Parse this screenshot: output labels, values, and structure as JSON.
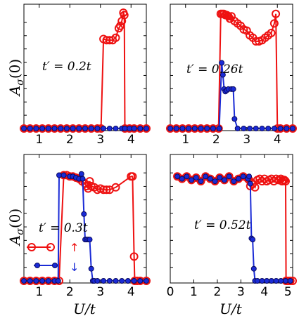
{
  "colors": {
    "up": "#ee1111",
    "down": "#1a2bd6",
    "down_edge": "#0a0a60"
  },
  "axis_labels": {
    "y": "A_σ(0)",
    "y_main": "A",
    "y_sub": "σ",
    "y_tail": "(0)",
    "x": "U/t"
  },
  "legend": {
    "up_symbol": "↑",
    "down_symbol": "↓"
  },
  "chart_data": [
    {
      "type": "line",
      "annotation": "t′ = 0.2t",
      "xlim": [
        0.5,
        4.5
      ],
      "ylim": [
        0,
        1
      ],
      "xticks": [
        1,
        2,
        3,
        4
      ],
      "xtick_labels": [
        "1",
        "2",
        "3",
        "4"
      ],
      "show_xticklabels": true,
      "series": [
        {
          "key": "up",
          "x": [
            0.5,
            0.7,
            0.9,
            1.1,
            1.3,
            1.5,
            1.7,
            1.9,
            2.1,
            2.3,
            2.5,
            2.7,
            2.9,
            3.02,
            3.1,
            3.2,
            3.3,
            3.4,
            3.5,
            3.6,
            3.65,
            3.7,
            3.75,
            3.78,
            3.8,
            3.95,
            4.1,
            4.3,
            4.5
          ],
          "y": [
            0,
            0,
            0,
            0,
            0,
            0,
            0,
            0,
            0,
            0,
            0,
            0,
            0,
            0,
            0.75,
            0.74,
            0.74,
            0.74,
            0.76,
            0.84,
            0.86,
            0.9,
            0.97,
            0.95,
            0,
            0,
            0,
            0,
            0
          ]
        },
        {
          "key": "down",
          "x": [
            0.5,
            0.7,
            0.9,
            1.1,
            1.3,
            1.5,
            1.7,
            1.9,
            2.1,
            2.3,
            2.5,
            2.7,
            2.9,
            3.1,
            3.3,
            3.5,
            3.7,
            3.8,
            3.95,
            4.1,
            4.3,
            4.5
          ],
          "y": [
            0,
            0,
            0,
            0,
            0,
            0,
            0,
            0,
            0,
            0,
            0,
            0,
            0,
            0,
            0,
            0,
            0,
            0,
            0,
            0,
            0,
            0
          ]
        }
      ]
    },
    {
      "type": "line",
      "annotation": "t′ = 0.26t",
      "xlim": [
        0.5,
        4.5
      ],
      "ylim": [
        0,
        1
      ],
      "xticks": [
        1,
        2,
        3,
        4
      ],
      "xtick_labels": [
        "1",
        "2",
        "3",
        "4"
      ],
      "show_xticklabels": true,
      "series": [
        {
          "key": "up",
          "x": [
            0.5,
            0.7,
            0.9,
            1.1,
            1.3,
            1.5,
            1.7,
            1.9,
            2.08,
            2.15,
            2.2,
            2.25,
            2.3,
            2.35,
            2.4,
            2.45,
            2.5,
            2.6,
            2.7,
            2.8,
            2.9,
            3.0,
            3.1,
            3.2,
            3.3,
            3.4,
            3.5,
            3.6,
            3.7,
            3.8,
            3.9,
            3.95,
            4.0,
            4.1,
            4.3,
            4.5
          ],
          "y": [
            0,
            0,
            0,
            0,
            0,
            0,
            0,
            0,
            0,
            0.96,
            0.96,
            0.96,
            0.95,
            0.95,
            0.94,
            0.92,
            0.94,
            0.9,
            0.88,
            0.86,
            0.83,
            0.82,
            0.78,
            0.76,
            0.73,
            0.73,
            0.74,
            0.76,
            0.78,
            0.8,
            0.88,
            0.96,
            0,
            0,
            0,
            0
          ]
        },
        {
          "key": "down",
          "x": [
            0.5,
            0.7,
            0.9,
            1.1,
            1.3,
            1.5,
            1.7,
            1.9,
            2.1,
            2.18,
            2.22,
            2.26,
            2.3,
            2.35,
            2.4,
            2.5,
            2.56,
            2.6,
            2.7,
            2.9,
            3.1,
            3.3,
            3.5,
            3.7,
            3.9,
            4.1,
            4.3,
            4.5
          ],
          "y": [
            0,
            0,
            0,
            0,
            0,
            0,
            0,
            0,
            0,
            0.55,
            0.45,
            0.33,
            0.31,
            0.32,
            0.33,
            0.33,
            0.33,
            0.08,
            0,
            0,
            0,
            0,
            0,
            0,
            0,
            0,
            0,
            0
          ]
        }
      ]
    },
    {
      "type": "line",
      "annotation": "t′ = 0.3t",
      "xlim": [
        0.5,
        4.5
      ],
      "ylim": [
        0,
        1
      ],
      "xticks": [
        1,
        2,
        3,
        4
      ],
      "xtick_labels": [
        "1",
        "2",
        "3",
        "4"
      ],
      "show_xticklabels": true,
      "series": [
        {
          "key": "up",
          "x": [
            0.5,
            0.7,
            0.9,
            1.1,
            1.3,
            1.5,
            1.65,
            1.8,
            1.9,
            2.0,
            2.1,
            2.2,
            2.3,
            2.4,
            2.5,
            2.55,
            2.6,
            2.65,
            2.7,
            2.8,
            2.9,
            3.0,
            3.1,
            3.2,
            3.3,
            3.5,
            4.0,
            4.05,
            4.1,
            4.12,
            4.2,
            4.3,
            4.5
          ],
          "y": [
            0,
            0,
            0,
            0,
            0,
            0,
            0,
            0.87,
            0.87,
            0.86,
            0.86,
            0.85,
            0.84,
            0.82,
            0.8,
            0.78,
            0.76,
            0.82,
            0.78,
            0.77,
            0.75,
            0.76,
            0.75,
            0.75,
            0.75,
            0.77,
            0.86,
            0.86,
            0.2,
            0,
            0,
            0,
            0
          ]
        },
        {
          "key": "down",
          "x": [
            0.5,
            0.7,
            0.9,
            1.1,
            1.3,
            1.5,
            1.62,
            1.65,
            1.8,
            2.0,
            2.1,
            2.2,
            2.3,
            2.38,
            2.42,
            2.46,
            2.5,
            2.55,
            2.6,
            2.65,
            2.7,
            2.75,
            2.8,
            2.9,
            3.1,
            3.3,
            3.5,
            3.7,
            3.9,
            4.1,
            4.3,
            4.5
          ],
          "y": [
            0,
            0,
            0,
            0,
            0,
            0,
            0,
            0.87,
            0.87,
            0.86,
            0.86,
            0.85,
            0.84,
            0.88,
            0.84,
            0.55,
            0.34,
            0.34,
            0.34,
            0.34,
            0.1,
            0,
            0,
            0,
            0,
            0,
            0,
            0,
            0,
            0,
            0,
            0
          ]
        }
      ]
    },
    {
      "type": "line",
      "annotation": "t′ = 0.52t",
      "xlim": [
        0,
        5.2
      ],
      "ylim": [
        0,
        1
      ],
      "xticks": [
        0,
        1,
        2,
        3,
        4,
        5
      ],
      "xtick_labels": [
        "0",
        "1",
        "2",
        "3",
        "4",
        "5"
      ],
      "show_xticklabels": true,
      "series": [
        {
          "key": "up",
          "x": [
            0.3,
            0.5,
            0.7,
            0.9,
            1.1,
            1.3,
            1.5,
            1.7,
            1.9,
            2.1,
            2.3,
            2.5,
            2.7,
            2.9,
            3.1,
            3.3,
            3.35,
            3.4,
            3.5,
            3.6,
            3.7,
            3.8,
            3.9,
            4.0,
            4.1,
            4.2,
            4.3,
            4.4,
            4.5,
            4.6,
            4.7,
            4.75,
            4.8,
            4.85,
            4.9,
            4.92,
            5.0,
            5.1,
            5.2
          ],
          "y": [
            0.86,
            0.84,
            0.86,
            0.83,
            0.85,
            0.82,
            0.86,
            0.84,
            0.82,
            0.85,
            0.83,
            0.86,
            0.82,
            0.84,
            0.86,
            0.84,
            0.83,
            0.78,
            0.8,
            0.77,
            0.83,
            0.84,
            0.82,
            0.84,
            0.82,
            0.83,
            0.84,
            0.82,
            0.84,
            0.83,
            0.84,
            0.82,
            0.83,
            0.83,
            0.82,
            0,
            0,
            0,
            0
          ]
        },
        {
          "key": "down",
          "x": [
            0.3,
            0.5,
            0.7,
            0.9,
            1.1,
            1.3,
            1.5,
            1.7,
            1.9,
            2.1,
            2.3,
            2.5,
            2.7,
            2.9,
            3.1,
            3.3,
            3.35,
            3.4,
            3.45,
            3.5,
            3.55,
            3.6,
            3.7,
            3.9,
            4.1,
            4.3,
            4.5,
            4.7,
            4.9,
            5.1
          ],
          "y": [
            0.86,
            0.84,
            0.86,
            0.83,
            0.85,
            0.82,
            0.86,
            0.84,
            0.82,
            0.85,
            0.83,
            0.86,
            0.82,
            0.84,
            0.86,
            0.84,
            0.86,
            0.8,
            0.35,
            0.34,
            0.1,
            0,
            0,
            0,
            0,
            0,
            0,
            0,
            0,
            0
          ]
        }
      ]
    }
  ]
}
